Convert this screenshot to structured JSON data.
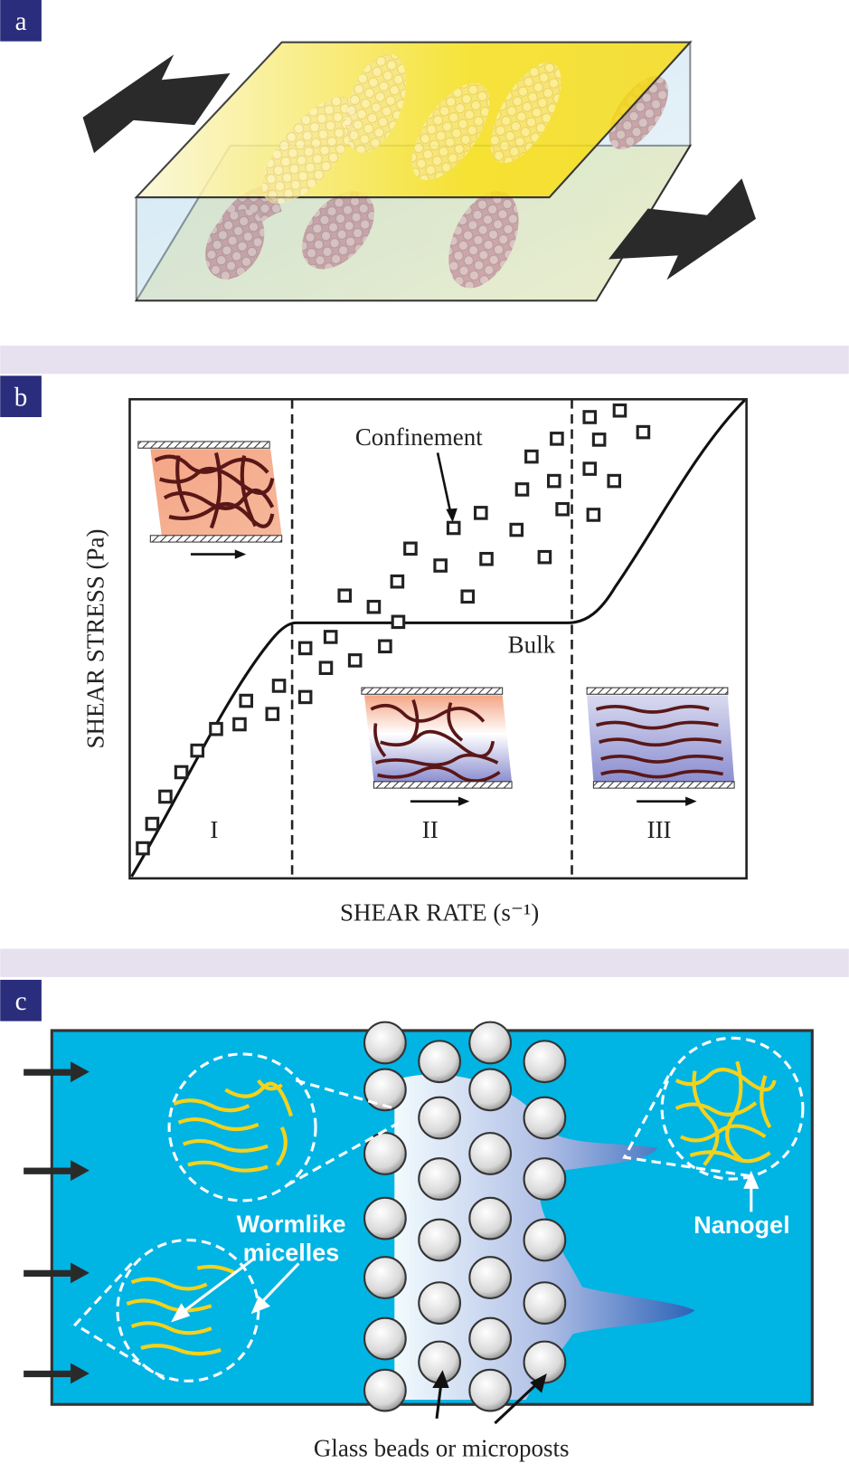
{
  "panels": [
    {
      "label": "a"
    },
    {
      "label": "b",
      "annotations": {
        "confinement": "Confinement",
        "bulk": "Bulk"
      },
      "regions": [
        "I",
        "II",
        "III"
      ],
      "y_axis_label": "SHEAR STRESS (Pa)",
      "x_axis_label": "SHEAR RATE (s⁻¹)"
    },
    {
      "label": "c",
      "micelles_label": [
        "Wormlike",
        "micelles"
      ],
      "nanogel_label": "Nanogel",
      "beads_label": "Glass beads or microposts"
    }
  ]
}
